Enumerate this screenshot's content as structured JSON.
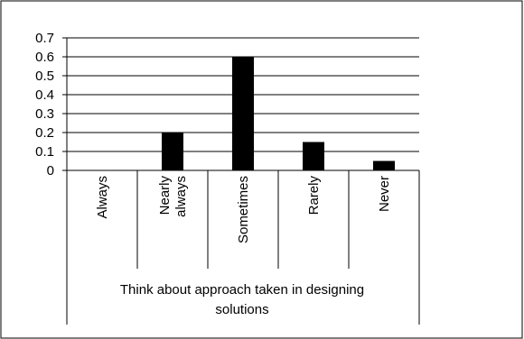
{
  "chart_data": {
    "type": "bar",
    "title": "",
    "categories": [
      [
        "Always"
      ],
      [
        "Nearly",
        "always"
      ],
      [
        "Sometimes"
      ],
      [
        "Rarely"
      ],
      [
        "Never"
      ]
    ],
    "values": [
      0,
      0.2,
      0.6,
      0.15,
      0.05
    ],
    "xlabel": [
      "Think about approach taken in designing",
      "solutions"
    ],
    "ylabel": "",
    "ylim": [
      0,
      0.7
    ],
    "yticks": [
      "0",
      "0.1",
      "0.2",
      "0.3",
      "0.4",
      "0.5",
      "0.6",
      "0.7"
    ],
    "grid": true,
    "legend": "none",
    "bar_color": "#000000"
  }
}
